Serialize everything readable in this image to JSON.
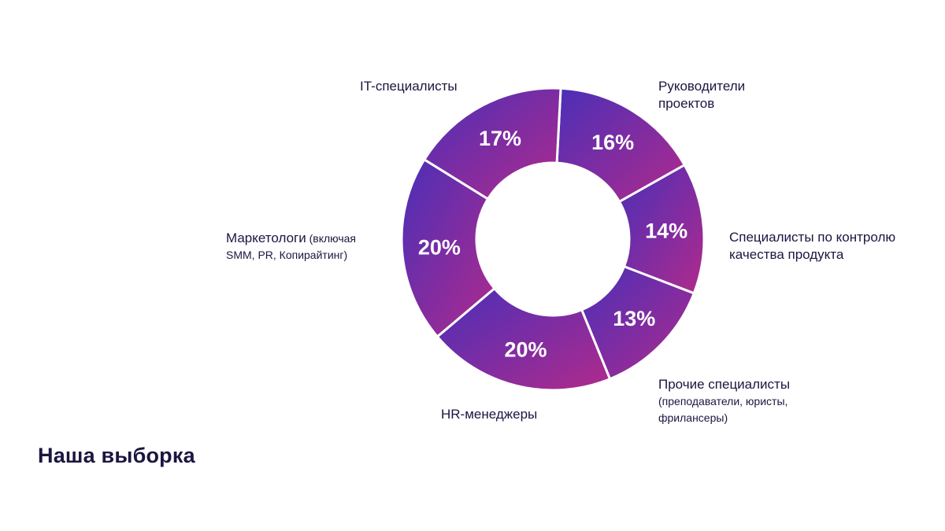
{
  "title": "Наша выборка",
  "chart_data": {
    "type": "pie",
    "donut": true,
    "title": "",
    "categories": [
      "Руководители проектов",
      "Специалисты по контролю качества продукта",
      "Прочие специалисты (преподаватели, юристы, фрилансеры)",
      "HR-менеджеры",
      "Маркетологи (включая SMM, PR, Копирайтинг)",
      "IT-специалисты"
    ],
    "values": [
      16,
      14,
      13,
      20,
      20,
      17
    ],
    "value_labels": [
      "16%",
      "14%",
      "13%",
      "20%",
      "20%",
      "17%"
    ],
    "gradient": {
      "from": "#4a2fb8",
      "to": "#b02a8c"
    }
  },
  "labels": {
    "pm_line1": "Руководители",
    "pm_line2": "проектов",
    "qa_line1": "Специалисты по контролю",
    "qa_line2": "качества продукта",
    "other_line1": "Прочие специалисты",
    "other_line2": "(преподаватели, юристы,",
    "other_line3": "фрилансеры)",
    "hr": "HR-менеджеры",
    "mkt_main": "Маркетологи",
    "mkt_rest1": " (включая",
    "mkt_line2": "SMM, PR, Копирайтинг)",
    "it": "IT-специалисты"
  }
}
